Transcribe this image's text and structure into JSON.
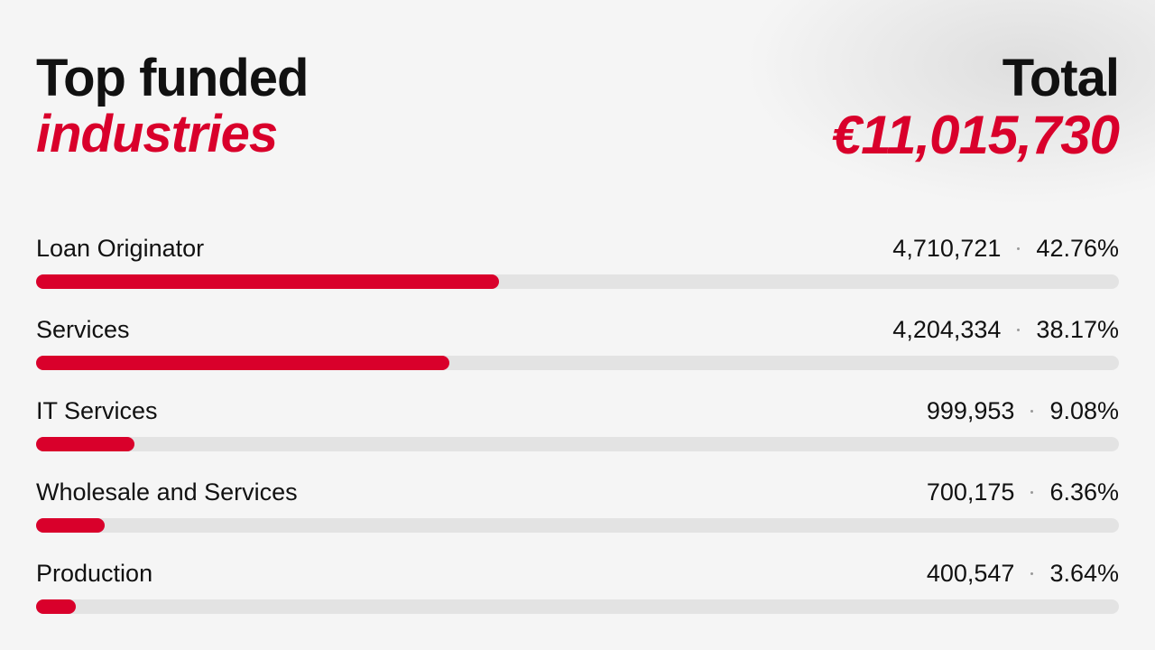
{
  "chart_data": {
    "type": "bar",
    "orientation": "horizontal",
    "title": "Top funded",
    "subtitle": "industries",
    "total_label": "Total",
    "total": "€11,015,730",
    "categories": [
      "Loan Originator",
      "Services",
      "IT Services",
      "Wholesale and Services",
      "Production"
    ],
    "amounts": [
      4710721,
      4204334,
      999953,
      700175,
      400547
    ],
    "amount_labels": [
      "4,710,721",
      "4,204,334",
      "999,953",
      "700,175",
      "400,547"
    ],
    "values": [
      42.76,
      38.17,
      9.08,
      6.36,
      3.64
    ],
    "value_labels": [
      "42.76%",
      "38.17%",
      "9.08%",
      "6.36%",
      "3.64%"
    ],
    "xlim": [
      0,
      100
    ],
    "color": "#d9002b",
    "track_color": "#e3e3e3"
  }
}
